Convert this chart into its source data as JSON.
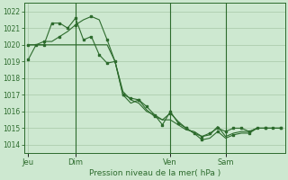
{
  "background_color": "#cde8d0",
  "grid_color": "#9dbf9d",
  "line_color": "#2d6b2d",
  "marker_color": "#2d6b2d",
  "xlabel": "Pression niveau de la mer( hPa )",
  "ylim": [
    1013.5,
    1022.5
  ],
  "yticks": [
    1014,
    1015,
    1016,
    1017,
    1018,
    1019,
    1020,
    1021,
    1022
  ],
  "day_labels": [
    "Jeu",
    "Dim",
    "Ven",
    "Sam"
  ],
  "day_positions": [
    0,
    6,
    18,
    25
  ],
  "n_points": 33,
  "series1": [
    1019.1,
    1020.0,
    1020.0,
    1021.3,
    1021.3,
    1021.0,
    1021.6,
    1020.3,
    1020.5,
    1019.4,
    1018.9,
    1019.0,
    1017.0,
    1016.8,
    1016.7,
    1016.3,
    1015.8,
    1015.2,
    1016.0,
    1015.3,
    1015.0,
    1014.7,
    1014.5,
    1014.7,
    1015.0,
    1014.8,
    1015.0,
    1015.0,
    1014.8,
    1015.0,
    1015.0,
    1015.0,
    1015.0
  ],
  "series2": [
    1020.0,
    1020.0,
    1020.2,
    1020.2,
    1020.5,
    1020.8,
    1021.2,
    1021.5,
    1021.7,
    1021.5,
    1020.3,
    1019.0,
    1017.0,
    1016.5,
    1016.7,
    1016.1,
    1015.7,
    1015.5,
    1015.9,
    1015.4,
    1015.0,
    1014.7,
    1014.3,
    1014.4,
    1014.8,
    1014.4,
    1014.6,
    1014.7,
    1014.7,
    1015.0,
    1015.0,
    1015.0,
    1015.0
  ],
  "series3": [
    1020.0,
    1020.0,
    1020.0,
    1020.0,
    1020.0,
    1020.0,
    1020.0,
    1020.0,
    1020.0,
    1020.0,
    1020.0,
    1019.0,
    1017.2,
    1016.7,
    1016.5,
    1016.0,
    1015.8,
    1015.5,
    1015.5,
    1015.2,
    1014.9,
    1014.8,
    1014.5,
    1014.6,
    1015.1,
    1014.5,
    1014.7,
    1014.8,
    1014.8,
    1015.0,
    1015.0,
    1015.0,
    1015.0
  ],
  "figsize": [
    3.2,
    2.0
  ],
  "dpi": 100
}
